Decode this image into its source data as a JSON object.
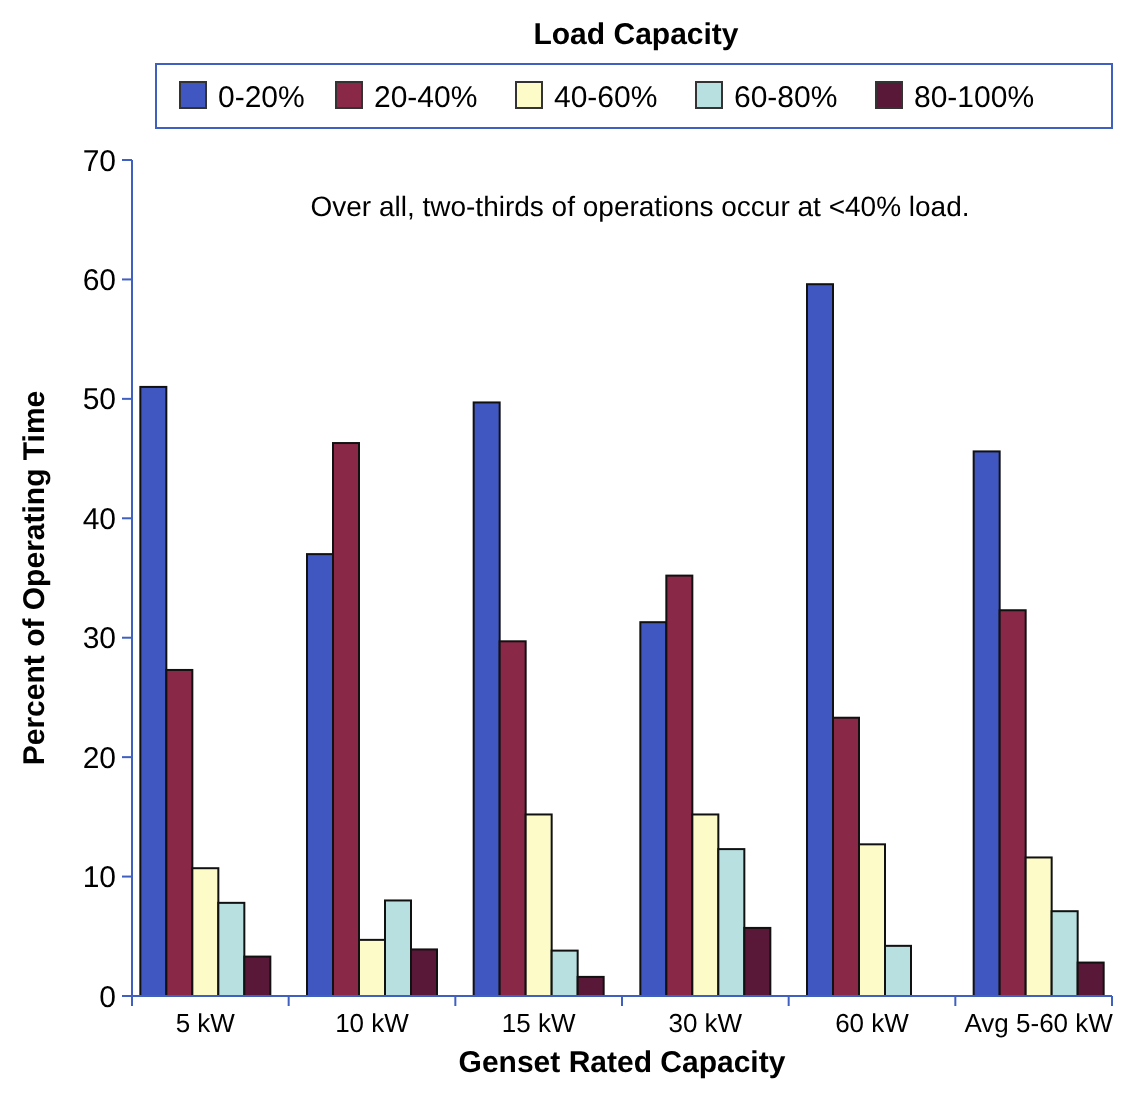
{
  "chart_data": {
    "type": "bar",
    "xlabel": "Genset Rated Capacity",
    "ylabel": "Percent of Operating Time",
    "legend_title": "Load Capacity",
    "legend": "top",
    "annotations": [
      "Over all, two-thirds of  operations occur at <40% load."
    ],
    "categories": [
      "5 kW",
      "10 kW",
      "15 kW",
      "30 kW",
      "60 kW",
      "Avg 5-60 kW"
    ],
    "ylim": [
      0,
      70
    ],
    "yticks": [
      0,
      10,
      20,
      30,
      40,
      50,
      60,
      70
    ],
    "grid": false,
    "series": [
      {
        "name": "0-20%",
        "color": "#4056c0",
        "values": [
          51,
          37,
          49.7,
          31.3,
          59.6,
          45.6
        ]
      },
      {
        "name": "20-40%",
        "color": "#8a2848",
        "values": [
          27.3,
          46.3,
          29.7,
          35.2,
          23.3,
          32.3
        ]
      },
      {
        "name": "40-60%",
        "color": "#fdfbc8",
        "values": [
          10.7,
          4.7,
          15.2,
          15.2,
          12.7,
          11.6
        ]
      },
      {
        "name": "60-80%",
        "color": "#b8e0e0",
        "values": [
          7.8,
          8,
          3.8,
          12.3,
          4.2,
          7.1
        ]
      },
      {
        "name": "80-100%",
        "color": "#5a1838",
        "values": [
          3.3,
          3.9,
          1.6,
          5.7,
          null,
          2.8
        ]
      }
    ]
  }
}
